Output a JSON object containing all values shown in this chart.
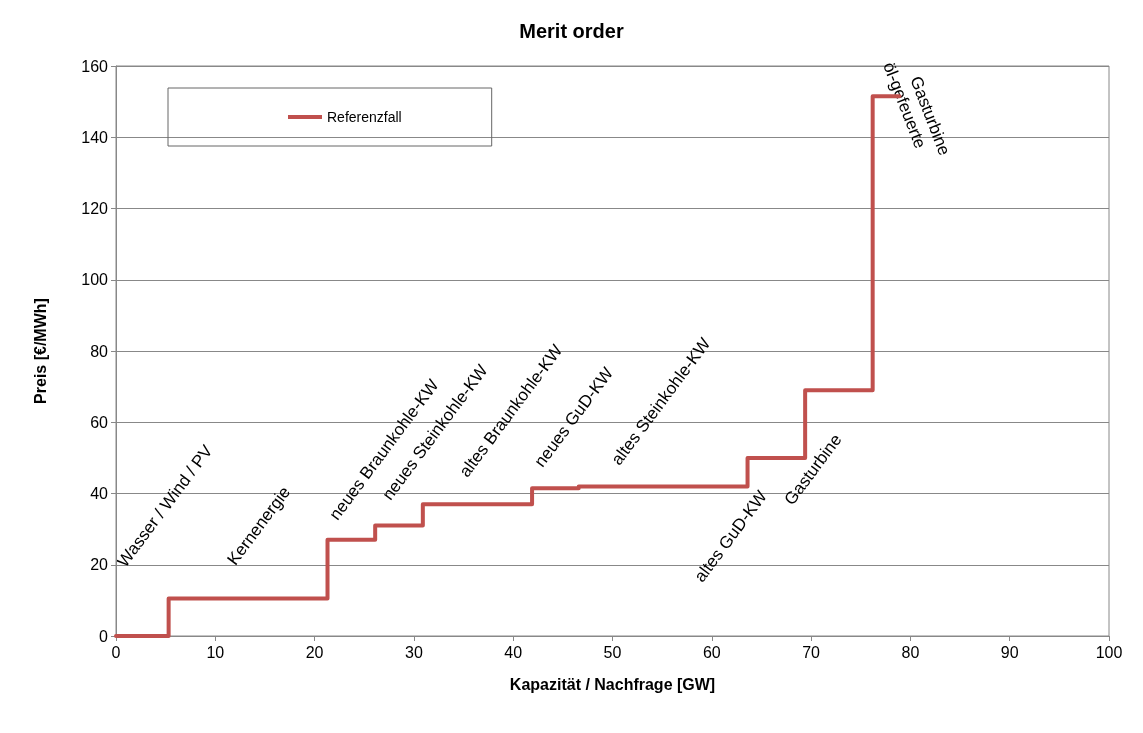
{
  "chart_data": {
    "type": "step",
    "title": "Merit order",
    "xlabel": "Kapazität / Nachfrage [GW]",
    "ylabel": "Preis [€/MWh]",
    "xlim": [
      0,
      100
    ],
    "xticks": [
      0,
      10,
      20,
      30,
      40,
      50,
      60,
      70,
      80,
      90,
      100
    ],
    "ylim": [
      0,
      160
    ],
    "yticks": [
      0,
      20,
      40,
      60,
      80,
      100,
      120,
      140,
      160
    ],
    "grid": "y",
    "legend": "top left",
    "marker": "none",
    "line_style": "solid",
    "series": [
      {
        "name": "Referenzfall",
        "color": "#c0504d",
        "x": [
          0,
          5.3,
          21.3,
          26.1,
          30.9,
          41.9,
          46.6,
          63.6,
          69.4,
          76.2,
          78.9
        ],
        "values": [
          0,
          10.5,
          27,
          31,
          37,
          41.5,
          42,
          50,
          69,
          151.5,
          151.5
        ]
      }
    ],
    "annotations": [
      "Wasser / Wind / PV",
      "Kernenergie",
      "neues Braunkohle-KW",
      "neues Steinkohle-KW",
      "altes Braunkohle-KW",
      "neues GuD-KW",
      "altes Steinkohle-KW",
      "altes GuD-KW",
      "Gasturbine",
      "öl-gefeuerte\nGasturbine"
    ]
  }
}
